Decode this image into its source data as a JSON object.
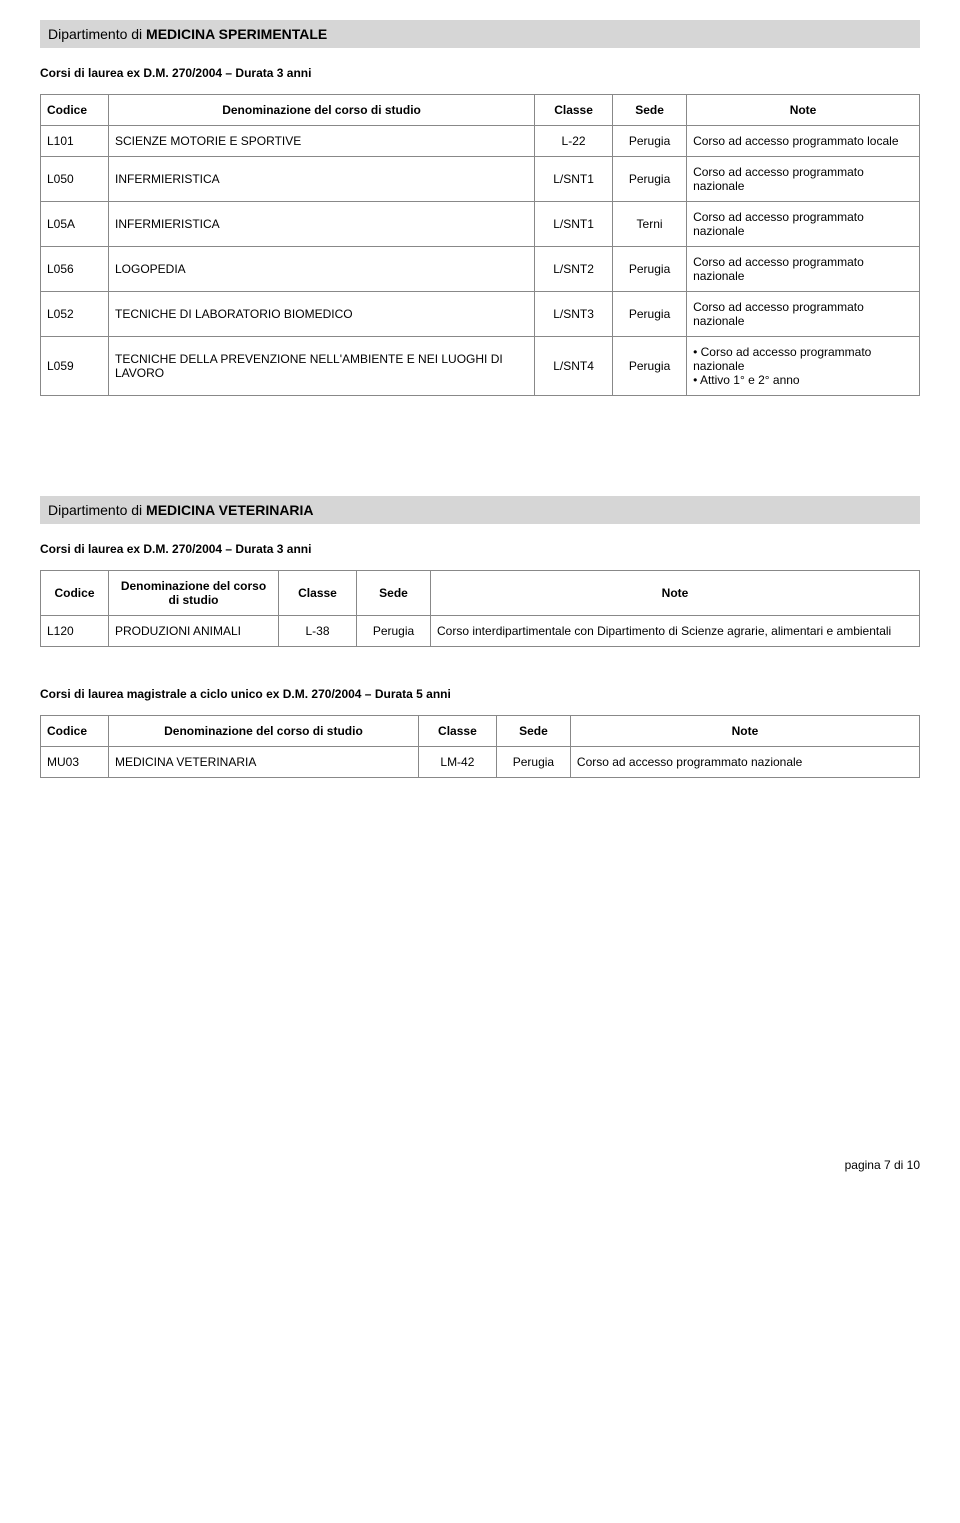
{
  "dept1": {
    "prefix": "Dipartimento di ",
    "name": "MEDICINA SPERIMENTALE",
    "section_title": "Corsi di laurea ex D.M. 270/2004 – Durata 3 anni",
    "headers": {
      "codice": "Codice",
      "denom": "Denominazione del corso di studio",
      "classe": "Classe",
      "sede": "Sede",
      "note": "Note"
    },
    "rows": [
      {
        "codice": "L101",
        "denom": "SCIENZE MOTORIE E SPORTIVE",
        "classe": "L-22",
        "sede": "Perugia",
        "note": "Corso ad accesso programmato locale"
      },
      {
        "codice": "L050",
        "denom": "INFERMIERISTICA",
        "classe": "L/SNT1",
        "sede": "Perugia",
        "note": "Corso ad accesso programmato nazionale"
      },
      {
        "codice": "L05A",
        "denom": "INFERMIERISTICA",
        "classe": "L/SNT1",
        "sede": "Terni",
        "note": "Corso ad accesso programmato nazionale"
      },
      {
        "codice": "L056",
        "denom": "LOGOPEDIA",
        "classe": "L/SNT2",
        "sede": "Perugia",
        "note": "Corso ad accesso programmato nazionale"
      },
      {
        "codice": "L052",
        "denom": "TECNICHE DI LABORATORIO BIOMEDICO",
        "classe": "L/SNT3",
        "sede": "Perugia",
        "note": "Corso ad accesso programmato nazionale"
      },
      {
        "codice": "L059",
        "denom": "TECNICHE DELLA PREVENZIONE NELL'AMBIENTE E NEI LUOGHI DI LAVORO",
        "classe": "L/SNT4",
        "sede": "Perugia",
        "note_list": [
          "Corso ad accesso programmato nazionale",
          "Attivo 1° e 2° anno"
        ]
      }
    ]
  },
  "dept2": {
    "prefix": "Dipartimento di ",
    "name": "MEDICINA VETERINARIA",
    "section1": {
      "title": "Corsi di laurea ex D.M. 270/2004 – Durata 3 anni",
      "headers": {
        "codice": "Codice",
        "denom": "Denominazione del corso di studio",
        "classe": "Classe",
        "sede": "Sede",
        "note": "Note"
      },
      "rows": [
        {
          "codice": "L120",
          "denom": "PRODUZIONI ANIMALI",
          "classe": "L-38",
          "sede": "Perugia",
          "note": "Corso interdipartimentale con Dipartimento di Scienze agrarie, alimentari e ambientali"
        }
      ]
    },
    "section2": {
      "title": "Corsi di laurea magistrale a ciclo unico ex D.M. 270/2004 – Durata 5 anni",
      "headers": {
        "codice": "Codice",
        "denom": "Denominazione del corso di studio",
        "classe": "Classe",
        "sede": "Sede",
        "note": "Note"
      },
      "rows": [
        {
          "codice": "MU03",
          "denom": "MEDICINA VETERINARIA",
          "classe": "LM-42",
          "sede": "Perugia",
          "note": "Corso ad accesso programmato nazionale"
        }
      ]
    }
  },
  "footer": "pagina 7 di 10"
}
